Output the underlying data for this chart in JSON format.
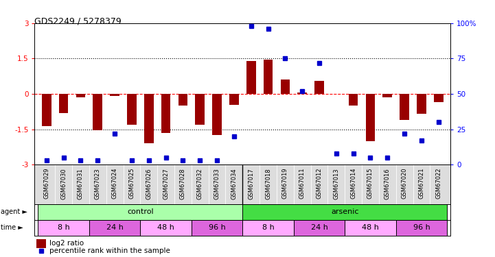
{
  "title": "GDS2249 / 5278379",
  "samples": [
    "GSM67029",
    "GSM67030",
    "GSM67031",
    "GSM67023",
    "GSM67024",
    "GSM67025",
    "GSM67026",
    "GSM67027",
    "GSM67028",
    "GSM67032",
    "GSM67033",
    "GSM67034",
    "GSM67017",
    "GSM67018",
    "GSM67019",
    "GSM67011",
    "GSM67012",
    "GSM67013",
    "GSM67014",
    "GSM67015",
    "GSM67016",
    "GSM67020",
    "GSM67021",
    "GSM67022"
  ],
  "log2_ratio": [
    -1.35,
    -0.8,
    -0.15,
    -1.55,
    -0.08,
    -1.3,
    -2.1,
    -1.65,
    -0.5,
    -1.3,
    -1.75,
    -0.45,
    1.4,
    1.45,
    0.6,
    0.05,
    0.55,
    0.0,
    -0.5,
    -2.0,
    -0.15,
    -1.1,
    -0.85,
    -0.35
  ],
  "percentile": [
    3,
    5,
    3,
    3,
    22,
    3,
    3,
    5,
    3,
    3,
    3,
    20,
    98,
    96,
    75,
    52,
    72,
    8,
    8,
    5,
    5,
    22,
    17,
    30
  ],
  "ylim_left": [
    -3,
    3
  ],
  "ylim_right": [
    0,
    100
  ],
  "yticks_left": [
    -3,
    -1.5,
    0,
    1.5,
    3
  ],
  "yticks_right": [
    0,
    25,
    50,
    75,
    100
  ],
  "hlines_dotted": [
    -1.5,
    1.5
  ],
  "hline_dashed": 0,
  "bar_color": "#990000",
  "dot_color": "#0000cc",
  "agent_groups": [
    {
      "label": "control",
      "start": 0,
      "end": 11,
      "color": "#aaffaa"
    },
    {
      "label": "arsenic",
      "start": 12,
      "end": 23,
      "color": "#44dd44"
    }
  ],
  "time_groups": [
    {
      "label": "8 h",
      "start": 0,
      "end": 2,
      "color": "#ffaaff"
    },
    {
      "label": "24 h",
      "start": 3,
      "end": 5,
      "color": "#dd66dd"
    },
    {
      "label": "48 h",
      "start": 6,
      "end": 8,
      "color": "#ffaaff"
    },
    {
      "label": "96 h",
      "start": 9,
      "end": 11,
      "color": "#dd66dd"
    },
    {
      "label": "8 h",
      "start": 12,
      "end": 14,
      "color": "#ffaaff"
    },
    {
      "label": "24 h",
      "start": 15,
      "end": 17,
      "color": "#dd66dd"
    },
    {
      "label": "48 h",
      "start": 18,
      "end": 20,
      "color": "#ffaaff"
    },
    {
      "label": "96 h",
      "start": 21,
      "end": 23,
      "color": "#dd66dd"
    }
  ],
  "legend_items": [
    {
      "label": "log2 ratio",
      "color": "#990000"
    },
    {
      "label": "percentile rank within the sample",
      "color": "#0000cc"
    }
  ]
}
